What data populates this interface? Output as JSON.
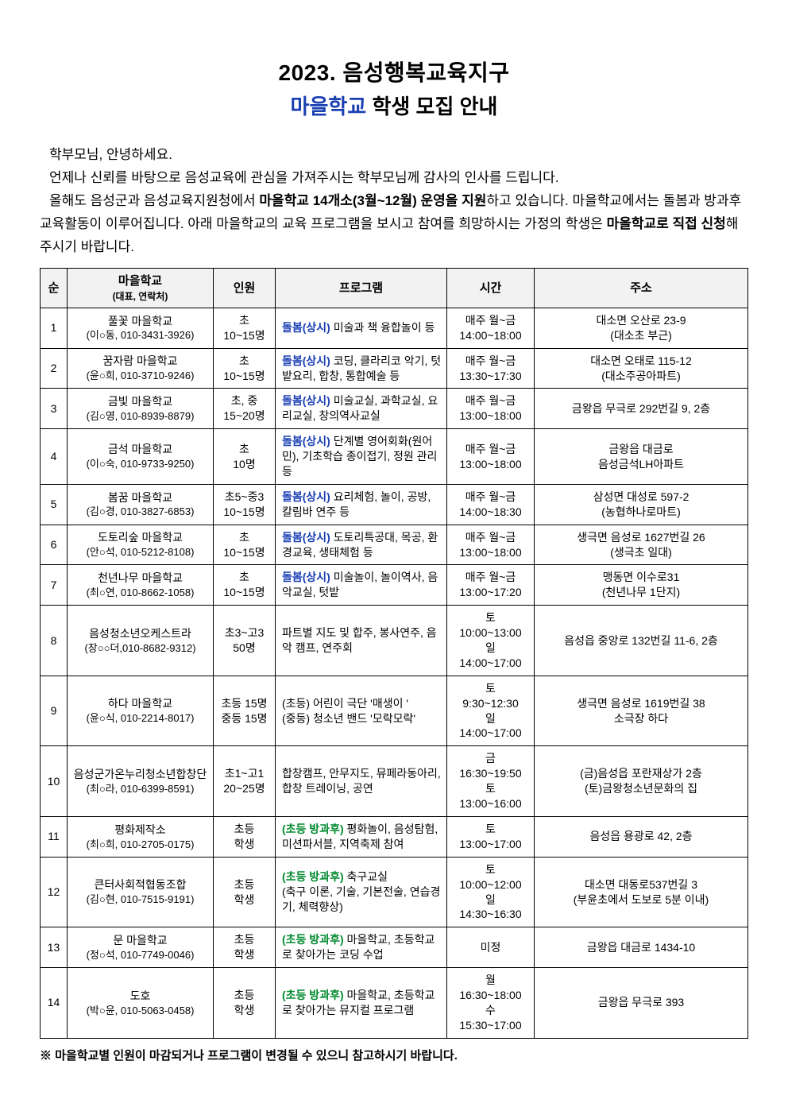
{
  "title": {
    "line1": "2023.  음성행복교육지구",
    "line2_highlight": "마을학교",
    "line2_rest": " 학생 모집 안내"
  },
  "intro": {
    "greeting": "학부모님,  안녕하세요.",
    "p1": "언제나 신뢰를 바탕으로 음성교육에 관심을 가져주시는 학부모님께 감사의 인사를 드립니다.",
    "p2_a": "올해도 음성군과 음성교육지원청에서 ",
    "p2_b_bold": "마을학교 14개소(3월~12월) 운영을 지원",
    "p2_c": "하고 있습니다. 마을학교에서는 돌봄과 방과후 교육활동이 이루어집니다. 아래 마을학교의 교육 프로그램을 보시고 참여를 희망하시는 가정의 학생은 ",
    "p2_d_bold": "마을학교로 직접 신청",
    "p2_e": "해주시기 바랍니다."
  },
  "headers": {
    "idx": "순",
    "school_main": "마을학교",
    "school_sub": "(대표, 연락처)",
    "capacity": "인원",
    "program": "프로그램",
    "time": "시간",
    "address": "주소"
  },
  "labels": {
    "dolbom": "돌봄(상시)",
    "banggwa": "(초등 방과후)"
  },
  "rows": [
    {
      "idx": "1",
      "school_name": "풀꽃 마을학교",
      "school_contact": "(이○동, 010-3431-3926)",
      "capacity": "초\n10~15명",
      "prog_type": "dolbom",
      "prog_text": " 미술과 책 융합놀이 등",
      "time": "매주 월~금\n14:00~18:00",
      "address": "대소면 오산로 23-9\n(대소초 부근)"
    },
    {
      "idx": "2",
      "school_name": "꿈자람 마을학교",
      "school_contact": "(윤○희, 010-3710-9246)",
      "capacity": "초\n10~15명",
      "prog_type": "dolbom",
      "prog_text": " 코딩, 클라리코 악기, 텃밭요리, 합창, 통합예술 등",
      "time": "매주 월~금\n13:30~17:30",
      "address": "대소면 오태로 115-12\n(대소주공아파트)"
    },
    {
      "idx": "3",
      "school_name": "금빛 마을학교",
      "school_contact": "(김○영, 010-8939-8879)",
      "capacity": "초, 중\n15~20명",
      "prog_type": "dolbom",
      "prog_text": " 미술교실, 과학교실, 요리교실, 창의역사교실",
      "time": "매주 월~금\n13:00~18:00",
      "address": "금왕읍 무극로 292번길 9, 2층"
    },
    {
      "idx": "4",
      "school_name": "금석 마을학교",
      "school_contact": "(이○숙, 010-9733-9250)",
      "capacity": "초\n10명",
      "prog_type": "dolbom",
      "prog_text": " 단계별 영어회화(원어민), 기초학습 종이접기, 정원 관리 등",
      "time": "매주 월~금\n13:00~18:00",
      "address": "금왕읍 대금로\n음성금석LH아파트"
    },
    {
      "idx": "5",
      "school_name": "봄꿈 마을학교",
      "school_contact": "(김○경, 010-3827-6853)",
      "capacity": "초5~중3\n10~15명",
      "prog_type": "dolbom",
      "prog_text": " 요리체험, 놀이, 공방, 칼림바 연주 등",
      "time": "매주 월~금\n14:00~18:30",
      "address": "삼성면 대성로 597-2\n(농협하나로마트)"
    },
    {
      "idx": "6",
      "school_name": "도토리숲 마을학교",
      "school_contact": "(안○석, 010-5212-8108)",
      "capacity": "초\n10~15명",
      "prog_type": "dolbom",
      "prog_text": " 도토리특공대, 목공, 환경교육, 생태체험 등",
      "time": "매주 월~금\n13:00~18:00",
      "address": "생극면 음성로 1627번길 26\n(생극초 일대)"
    },
    {
      "idx": "7",
      "school_name": "천년나무 마을학교",
      "school_contact": "(최○연, 010-8662-1058)",
      "capacity": "초\n10~15명",
      "prog_type": "dolbom",
      "prog_text": " 미술놀이, 놀이역사, 음악교실, 텃밭",
      "time": "매주 월~금\n13:00~17:20",
      "address": "맹동면 이수로31\n(천년나무 1단지)"
    },
    {
      "idx": "8",
      "school_name": "음성청소년오케스트라",
      "school_contact": "(장○○더,010-8682-9312)",
      "capacity": "초3~고3\n50명",
      "prog_type": "none",
      "prog_text": "파트별 지도 및 합주, 봉사연주, 음악 캠프, 연주회",
      "time": "토\n10:00~13:00\n일\n14:00~17:00",
      "address": "음성읍 중앙로 132번길 11-6, 2층"
    },
    {
      "idx": "9",
      "school_name": "하다 마을학교",
      "school_contact": "(윤○식, 010-2214-8017)",
      "capacity": "초등 15명\n중등 15명",
      "prog_type": "none",
      "prog_text": "(초등) 어린이 극단 '매생이 '\n(중등) 청소년 밴드 '모락모락'",
      "time": "토\n9:30~12:30\n일\n14:00~17:00",
      "address": "생극면 음성로 1619번길 38\n소극장 하다"
    },
    {
      "idx": "10",
      "school_name": "음성군가온누리청소년합창단",
      "school_contact": "(최○라, 010-6399-8591)",
      "capacity": "초1~고1\n20~25명",
      "prog_type": "none",
      "prog_text": "합창캠프, 안무지도, 뮤페라동아리, 합창 트레이닝, 공연",
      "time": "금\n16:30~19:50\n토\n13:00~16:00",
      "address": "(금)음성읍 포란재상가 2층\n(토)금왕청소년문화의 집"
    },
    {
      "idx": "11",
      "school_name": "평화제작소",
      "school_contact": "(최○희, 010-2705-0175)",
      "capacity": "초등\n학생",
      "prog_type": "banggwa",
      "prog_text": " 평화놀이, 음성탐험, 미션파서블, 지역축제 참여",
      "time": "토\n13:00~17:00",
      "address": "음성읍 용광로 42, 2층"
    },
    {
      "idx": "12",
      "school_name": "큰터사회적협동조합",
      "school_contact": "(김○현, 010-7515-9191)",
      "capacity": "초등\n학생",
      "prog_type": "banggwa",
      "prog_text": " 축구교실\n(축구 이론, 기술, 기본전술, 연습경기, 체력향상)",
      "time": "토\n10:00~12:00\n일\n14:30~16:30",
      "address": "대소면 대동로537번길 3\n(부윤초에서 도보로 5분 이내)"
    },
    {
      "idx": "13",
      "school_name": "문 마을학교",
      "school_contact": "(정○석, 010-7749-0046)",
      "capacity": "초등\n학생",
      "prog_type": "banggwa",
      "prog_text": " 마을학교, 초등학교로 찾아가는 코딩 수업",
      "time": "미정",
      "address": "금왕읍 대금로 1434-10"
    },
    {
      "idx": "14",
      "school_name": "도호",
      "school_contact": "(박○윤, 010-5063-0458)",
      "capacity": "초등\n학생",
      "prog_type": "banggwa",
      "prog_text": " 마을학교, 초등학교로 찾아가는 뮤지컬 프로그램",
      "time": "월\n16:30~18:00\n수\n15:30~17:00",
      "address": "금왕읍 무극로 393"
    }
  ],
  "footnote": "※ 마을학교별 인원이 마감되거나 프로그램이 변경될 수 있으니 참고하시기 바랍니다.",
  "style": {
    "highlight_color": "#1a3fb3",
    "banggwa_color": "#008a2e",
    "header_bg": "#f2f2f2",
    "border_color": "#000000"
  }
}
